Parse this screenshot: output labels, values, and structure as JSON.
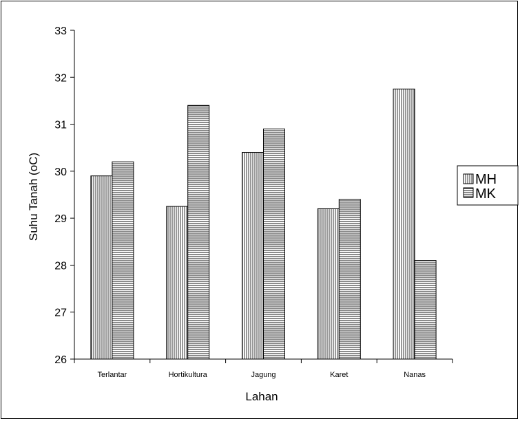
{
  "chart_data": {
    "type": "bar",
    "categories": [
      "Terlantar",
      "Hortikultura",
      "Jagung",
      "Karet",
      "Nanas"
    ],
    "series": [
      {
        "name": "MH",
        "values": [
          29.9,
          29.25,
          30.4,
          29.2,
          31.75
        ],
        "pattern": "vertical-lines"
      },
      {
        "name": "MK",
        "values": [
          30.2,
          31.4,
          30.9,
          29.4,
          28.1
        ],
        "pattern": "horizontal-lines"
      }
    ],
    "xlabel": "Lahan",
    "ylabel": "Suhu Tanah (oC)",
    "ylim": [
      26,
      33
    ],
    "yticks": [
      26,
      27,
      28,
      29,
      30,
      31,
      32,
      33
    ],
    "grid": false,
    "legend": "right"
  }
}
